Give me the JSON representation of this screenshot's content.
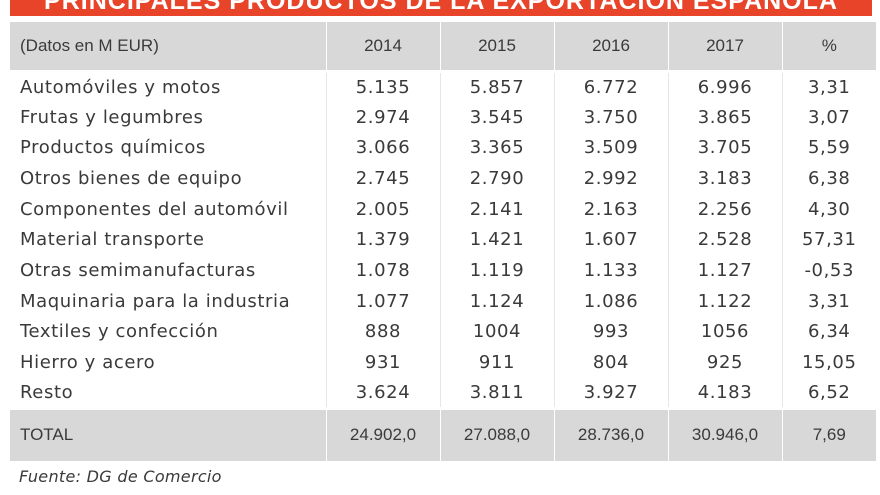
{
  "title": "PRINCIPALES PRODUCTOS DE LA EXPORTACIÓN ESPAÑOLA",
  "header": [
    "(Datos en M EUR)",
    "2014",
    "2015",
    "2016",
    "2017",
    "%"
  ],
  "rows": [
    [
      "Automóviles y motos",
      "5.135",
      "5.857",
      "6.772",
      "6.996",
      "3,31"
    ],
    [
      "Frutas y legumbres",
      "2.974",
      "3.545",
      "3.750",
      "3.865",
      "3,07"
    ],
    [
      "Productos químicos",
      "3.066",
      "3.365",
      "3.509",
      "3.705",
      "5,59"
    ],
    [
      "Otros bienes de equipo",
      "2.745",
      "2.790",
      "2.992",
      "3.183",
      "6,38"
    ],
    [
      "Componentes del automóvil",
      "2.005",
      "2.141",
      "2.163",
      "2.256",
      "4,30"
    ],
    [
      "Material transporte",
      "1.379",
      "1.421",
      "1.607",
      "2.528",
      "57,31"
    ],
    [
      "Otras semimanufacturas",
      "1.078",
      "1.119",
      "1.133",
      "1.127",
      "-0,53"
    ],
    [
      "Maquinaria para la industria",
      "1.077",
      "1.124",
      "1.086",
      "1.122",
      "3,31"
    ],
    [
      "Textiles y confección",
      "888",
      "1004",
      "993",
      "1056",
      "6,34"
    ],
    [
      "Hierro y acero",
      "931",
      "911",
      "804",
      "925",
      "15,05"
    ],
    [
      "Resto",
      "3.624",
      "3.811",
      "3.927",
      "4.183",
      "6,52"
    ]
  ],
  "total": [
    "TOTAL",
    "24.902,0",
    "27.088,0",
    "28.736,0",
    "30.946,0",
    "7,69"
  ],
  "source": "Fuente: DG de Comercio",
  "colors": {
    "title_background": "#e8442a",
    "header_background": "#d8d8d8",
    "text": "#3a3a3a"
  }
}
